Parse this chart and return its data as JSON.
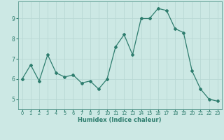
{
  "x": [
    0,
    1,
    2,
    3,
    4,
    5,
    6,
    7,
    8,
    9,
    10,
    11,
    12,
    13,
    14,
    15,
    16,
    17,
    18,
    19,
    20,
    21,
    22,
    23
  ],
  "y": [
    6.0,
    6.7,
    5.9,
    7.2,
    6.3,
    6.1,
    6.2,
    5.8,
    5.9,
    5.5,
    6.0,
    7.6,
    8.2,
    7.2,
    9.0,
    9.0,
    9.5,
    9.4,
    8.5,
    8.3,
    6.4,
    5.5,
    5.0,
    4.9
  ],
  "title": "",
  "xlabel": "Humidex (Indice chaleur)",
  "ylabel": "",
  "xlim": [
    -0.5,
    23.5
  ],
  "ylim": [
    4.5,
    9.85
  ],
  "yticks": [
    5,
    6,
    7,
    8,
    9
  ],
  "xticks": [
    0,
    1,
    2,
    3,
    4,
    5,
    6,
    7,
    8,
    9,
    10,
    11,
    12,
    13,
    14,
    15,
    16,
    17,
    18,
    19,
    20,
    21,
    22,
    23
  ],
  "bg_color": "#cce8e4",
  "line_color": "#2e7d6e",
  "grid_color": "#b8d8d4",
  "text_color": "#2e7d6e"
}
